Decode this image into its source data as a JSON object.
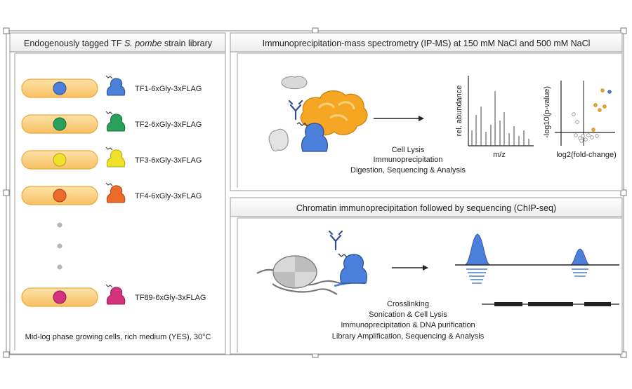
{
  "left_panel": {
    "title_prefix": "Endogenously tagged TF ",
    "title_species": "S. pombe",
    "title_suffix": " strain library",
    "strains": [
      {
        "label": "TF1-6xGly-3xFLAG",
        "color": "#4a7fdc"
      },
      {
        "label": "TF2-6xGly-3xFLAG",
        "color": "#2aa05a"
      },
      {
        "label": "TF3-6xGly-3xFLAG",
        "color": "#f2e12a"
      },
      {
        "label": "TF4-6xGly-3xFLAG",
        "color": "#ee6a2a"
      },
      {
        "label": "TF89-6xGly-3xFLAG",
        "color": "#d6317f"
      }
    ],
    "footer": "Mid-log phase growing cells, rich medium (YES), 30°C"
  },
  "ipms_panel": {
    "title": "Immunoprecipitation-mass spectrometry (IP-MS) at 150 mM NaCl and 500 mM NaCl",
    "steps": [
      "Cell Lysis",
      "Immunoprecipitation",
      "Digestion, Sequencing & Analysis"
    ],
    "spectrum": {
      "ylabel": "rel. abundance",
      "xlabel": "m/z"
    },
    "volcano": {
      "ylabel": "-log10(p-value)",
      "xlabel": "log2(fold-change)"
    }
  },
  "chip_panel": {
    "title": "Chromatin immunoprecipitation followed by sequencing (ChIP-seq)",
    "steps": [
      "Crosslinking",
      "Sonication & Cell Lysis",
      "Immunoprecipitation & DNA purification",
      "Library Amplification, Sequencing & Analysis"
    ]
  },
  "colors": {
    "tf_blue": "#4a7fdc",
    "cell_fill": "#fbd28a",
    "cell_stroke": "#e9a93a",
    "complex": "#f5a623"
  }
}
